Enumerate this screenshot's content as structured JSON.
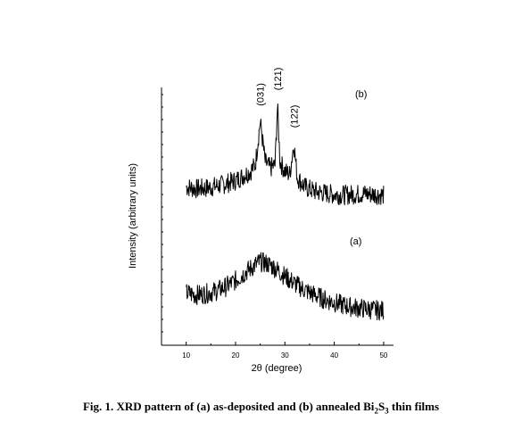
{
  "caption": {
    "prefix": "Fig. 1. XRD pattern of (a) as-deposited and (b) annealed Bi",
    "sub1": "2",
    "mid": "S",
    "sub2": "3",
    "suffix": " thin films"
  },
  "chart_data": {
    "type": "line",
    "title": "",
    "xlabel": "2θ (degree)",
    "ylabel": "Intensity (arbitrary units)",
    "xlim": [
      5,
      52
    ],
    "xticks": [
      "10",
      "20",
      "30",
      "40",
      "50"
    ],
    "yticks_shown": false,
    "grid": false,
    "legend": "none",
    "series": [
      {
        "label": "(b)",
        "x": [
          10,
          12,
          14,
          16,
          18,
          20,
          21,
          22,
          23,
          24,
          25,
          26,
          27,
          28,
          28.5,
          29,
          30,
          31,
          31.8,
          32.5,
          34,
          36,
          38,
          40,
          42,
          44,
          46,
          48,
          50
        ],
        "y": [
          2.15,
          2.12,
          2.13,
          2.16,
          2.2,
          2.25,
          2.3,
          2.35,
          2.4,
          2.5,
          3.2,
          2.55,
          2.45,
          2.5,
          3.45,
          2.55,
          2.4,
          2.35,
          2.85,
          2.3,
          2.15,
          2.08,
          2.05,
          2.03,
          2.02,
          2.03,
          2.04,
          2.03,
          2.02
        ]
      },
      {
        "label": "(a)",
        "x": [
          10,
          12,
          14,
          16,
          18,
          20,
          22,
          24,
          25,
          26,
          27,
          28,
          30,
          32,
          34,
          36,
          38,
          40,
          42,
          44,
          46,
          48,
          50
        ],
        "y": [
          0.45,
          0.42,
          0.44,
          0.48,
          0.55,
          0.65,
          0.78,
          0.9,
          0.95,
          0.93,
          0.9,
          0.85,
          0.72,
          0.6,
          0.5,
          0.42,
          0.35,
          0.3,
          0.25,
          0.22,
          0.2,
          0.18,
          0.17
        ]
      }
    ],
    "annotations": [
      {
        "text": "(031)",
        "x": 25,
        "series": "(b)"
      },
      {
        "text": "(121)",
        "x": 28.5,
        "series": "(b)"
      },
      {
        "text": "(122)",
        "x": 31.8,
        "series": "(b)"
      }
    ],
    "series_labels": [
      "(b)",
      "(a)"
    ]
  }
}
